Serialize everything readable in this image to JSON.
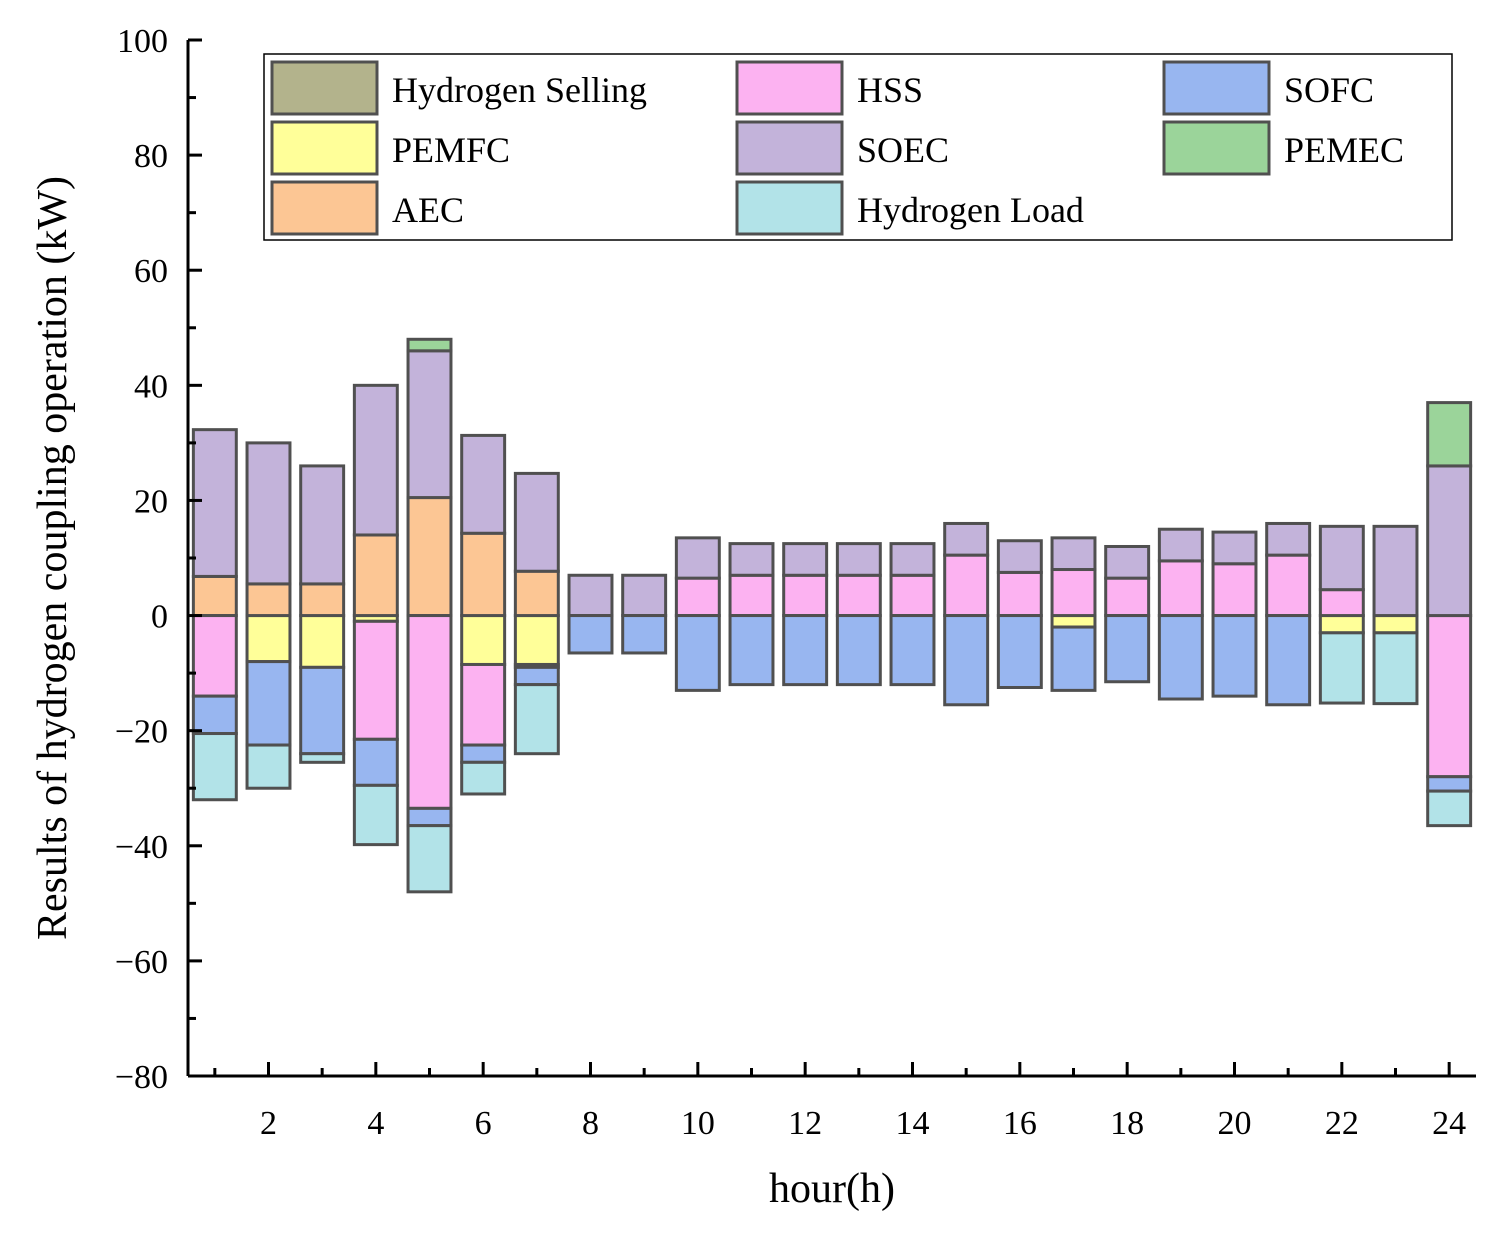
{
  "chart_data": {
    "type": "bar",
    "stacked": true,
    "title": "",
    "xlabel": "hour(h)",
    "ylabel": "Results of hydrogen coupling operation (kW)",
    "xlim": [
      0.5,
      24.5
    ],
    "ylim": [
      -80,
      100
    ],
    "x": [
      1,
      2,
      3,
      4,
      5,
      6,
      7,
      8,
      9,
      10,
      11,
      12,
      13,
      14,
      15,
      16,
      17,
      18,
      19,
      20,
      21,
      22,
      23,
      24
    ],
    "x_tick_labels": [
      "2",
      "4",
      "6",
      "8",
      "10",
      "12",
      "14",
      "16",
      "18",
      "20",
      "22",
      "24"
    ],
    "x_tick_values": [
      2,
      4,
      6,
      8,
      10,
      12,
      14,
      16,
      18,
      20,
      22,
      24
    ],
    "y_tick_labels": [
      "100",
      "80",
      "60",
      "40",
      "20",
      "0",
      "−20",
      "−40",
      "−60",
      "−80"
    ],
    "y_tick_values": [
      100,
      80,
      60,
      40,
      20,
      0,
      -20,
      -40,
      -60,
      -80
    ],
    "legend_position": "top",
    "series": [
      {
        "name": "Hydrogen Selling",
        "color": "#b3b38c",
        "values": [
          0,
          0,
          0,
          0,
          0,
          0,
          0,
          0,
          0,
          0,
          0,
          0,
          0,
          0,
          0,
          0,
          0,
          0,
          0,
          0,
          0,
          0,
          0,
          0
        ]
      },
      {
        "name": "PEMFC",
        "color": "#ffff99",
        "values": [
          0,
          -8,
          -9,
          -1,
          0,
          -8.5,
          -8.5,
          0,
          0,
          0,
          0,
          0,
          0,
          0,
          0,
          0,
          -2,
          0,
          0,
          0,
          0,
          -3,
          -3,
          0
        ]
      },
      {
        "name": "AEC",
        "color": "#fcc694",
        "values": [
          6.8,
          5.5,
          5.5,
          14,
          20.5,
          14.3,
          7.7,
          0,
          0,
          0,
          0,
          0,
          0,
          0,
          0,
          0,
          0,
          0,
          0,
          0,
          0,
          0,
          0,
          0
        ]
      },
      {
        "name": "HSS",
        "color": "#fcb2f1",
        "values": [
          -14,
          0,
          0,
          -20.5,
          -33.5,
          -14,
          -0.5,
          0,
          0,
          6.5,
          7,
          7,
          7,
          7,
          10.5,
          7.5,
          8,
          6.5,
          9.5,
          9,
          10.5,
          4.5,
          0,
          -28
        ]
      },
      {
        "name": "SOEC",
        "color": "#c3b3da",
        "values": [
          25.5,
          24.5,
          20.5,
          26,
          25.5,
          17,
          17,
          7,
          7,
          7,
          5.5,
          5.5,
          5.5,
          5.5,
          5.5,
          5.5,
          5.5,
          5.5,
          5.5,
          5.5,
          5.5,
          11,
          15.5,
          26
        ]
      },
      {
        "name": "SOFC",
        "color": "#98b6f0",
        "values": [
          -6.5,
          -14.5,
          -15,
          -8,
          -3,
          -3,
          -3,
          -6.5,
          -6.5,
          -13,
          -12,
          -12,
          -12,
          -12,
          -15.5,
          -12.5,
          -11,
          -11.5,
          -14.5,
          -14,
          -15.5,
          0,
          0,
          -2.5
        ]
      },
      {
        "name": "PEMEC",
        "color": "#9bd49a",
        "values": [
          0,
          0,
          0,
          0,
          2,
          0,
          0,
          0,
          0,
          0,
          0,
          0,
          0,
          0,
          0,
          0,
          0,
          0,
          0,
          0,
          0,
          0,
          0,
          11
        ]
      },
      {
        "name": "Hydrogen Load",
        "color": "#b2e3e8",
        "values": [
          -11.5,
          -7.5,
          -1.5,
          -10.3,
          -11.5,
          -5.5,
          -12,
          0,
          0,
          0,
          0,
          0,
          0,
          0,
          0,
          0,
          0,
          0,
          0,
          0,
          0,
          -12.2,
          -12.3,
          -6
        ]
      }
    ]
  }
}
